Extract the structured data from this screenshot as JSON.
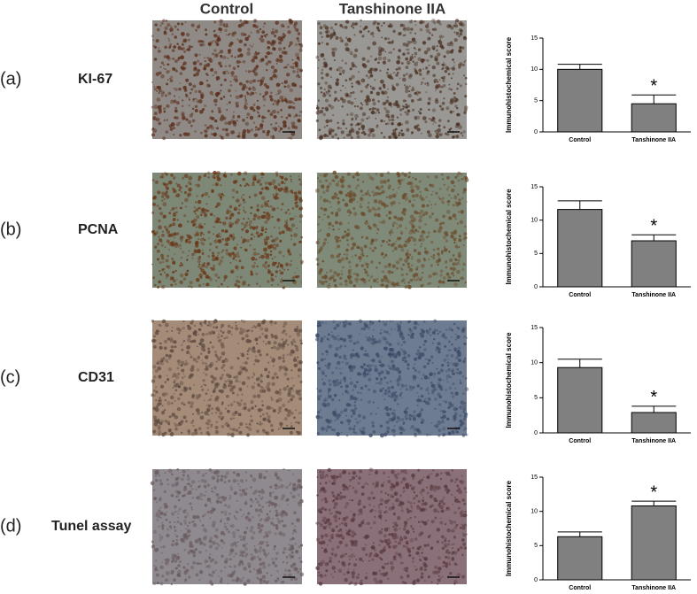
{
  "columns": [
    "Control",
    "Tanshinone IIA"
  ],
  "panels": [
    {
      "label": "(a)",
      "marker": "KI-67"
    },
    {
      "label": "(b)",
      "marker": "PCNA"
    },
    {
      "label": "(c)",
      "marker": "CD31"
    },
    {
      "label": "(d)",
      "marker": "Tunel assay"
    }
  ],
  "chart_data": [
    {
      "type": "bar",
      "ylabel": "Immunohistochemical score",
      "categories": [
        "Control",
        "Tanshinone IIA"
      ],
      "values": [
        10,
        4.5
      ],
      "errors": [
        0.8,
        1.4
      ],
      "color": "#808080",
      "ylim": [
        0,
        15
      ],
      "yticks": [
        0,
        5,
        10,
        15
      ],
      "annotations": [
        {
          "text": "*",
          "x": "Tanshinone IIA"
        }
      ]
    },
    {
      "type": "bar",
      "ylabel": "Immunohistochemical score",
      "categories": [
        "Control",
        "Tanshinone IIA"
      ],
      "values": [
        11.6,
        6.9
      ],
      "errors": [
        1.3,
        0.9
      ],
      "color": "#808080",
      "ylim": [
        0,
        15
      ],
      "yticks": [
        0,
        5,
        10,
        15
      ],
      "annotations": [
        {
          "text": "*",
          "x": "Tanshinone IIA"
        }
      ]
    },
    {
      "type": "bar",
      "ylabel": "Immunohistochemical score",
      "categories": [
        "Control",
        "Tanshinone IIA"
      ],
      "values": [
        9.3,
        2.9
      ],
      "errors": [
        1.2,
        0.9
      ],
      "color": "#808080",
      "ylim": [
        0,
        15
      ],
      "yticks": [
        0,
        5,
        10,
        15
      ],
      "annotations": [
        {
          "text": "*",
          "x": "Tanshinone IIA"
        }
      ]
    },
    {
      "type": "bar",
      "ylabel": "Immunohistochemical score",
      "categories": [
        "Control",
        "Tanshinone IIA"
      ],
      "values": [
        6.3,
        10.8
      ],
      "errors": [
        0.7,
        0.7
      ],
      "color": "#808080",
      "ylim": [
        0,
        15
      ],
      "yticks": [
        0,
        5,
        10,
        15
      ],
      "annotations": [
        {
          "text": "*",
          "x": "Tanshinone IIA"
        }
      ]
    }
  ]
}
